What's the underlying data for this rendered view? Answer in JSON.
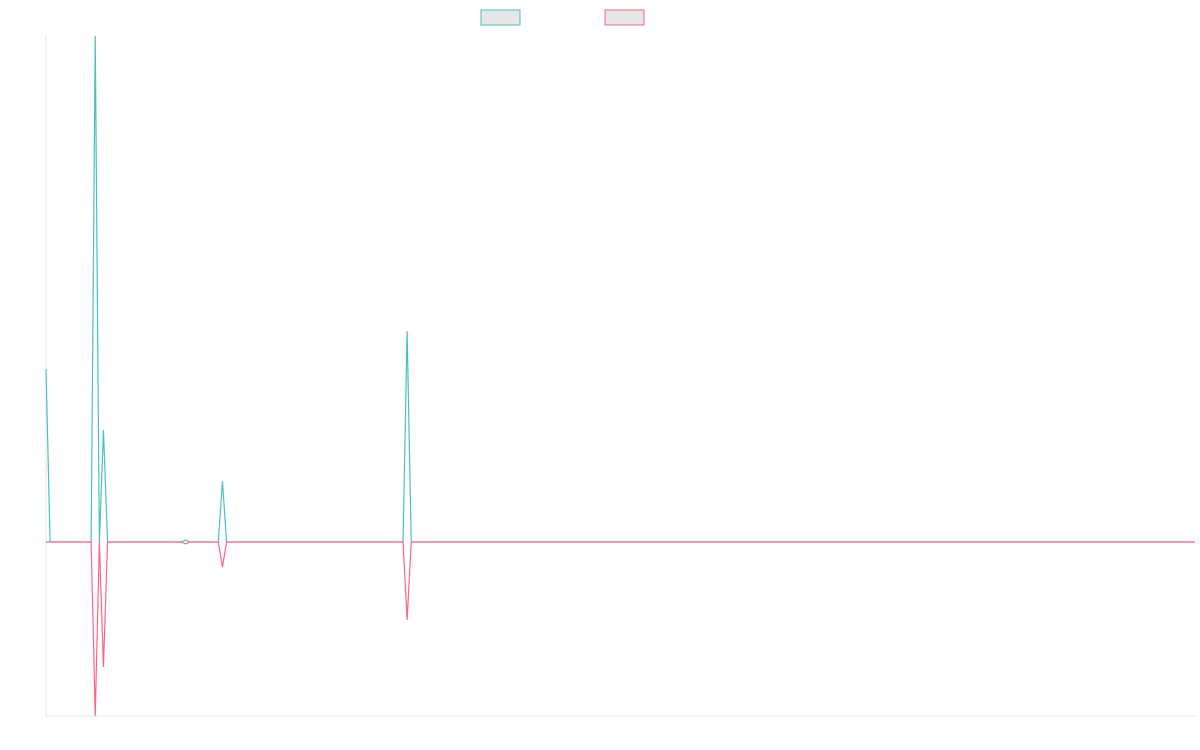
{
  "chart_data": {
    "type": "line",
    "x": [
      0,
      1,
      11,
      12,
      13,
      14,
      15,
      33,
      34,
      35,
      42,
      43,
      44,
      87,
      88,
      89,
      280
    ],
    "xlim": [
      0,
      280
    ],
    "ylim": [
      -1.74,
      5.06
    ],
    "series": [
      {
        "color": "#4bc0c0",
        "values": [
          1.73,
          0,
          0,
          5.06,
          0,
          1.12,
          0,
          0,
          0.02,
          0,
          0,
          0.61,
          0,
          0,
          2.11,
          0,
          0
        ]
      },
      {
        "color": "#ff6384",
        "values": [
          0,
          0,
          0,
          -1.74,
          0,
          -1.25,
          0,
          0,
          -0.02,
          0,
          0,
          -0.25,
          0,
          0,
          -0.78,
          0,
          0
        ]
      }
    ]
  }
}
